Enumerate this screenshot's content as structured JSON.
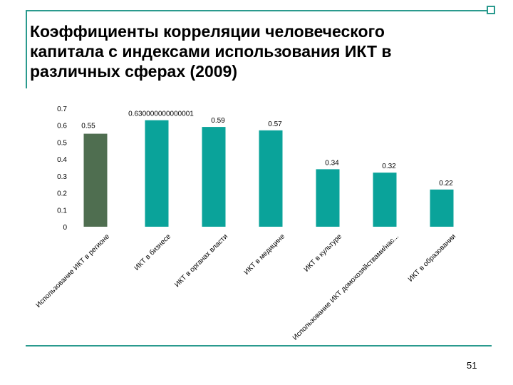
{
  "slide": {
    "title": "Коэффициенты корреляции человеческого капитала с индексами использования ИКТ в различных сферах (2009)",
    "page_number": "51",
    "colors": {
      "frame": "#2a9a8e",
      "bar_highlight": "#4f6e50",
      "bar": "#0aa39a"
    }
  },
  "chart_data": {
    "type": "bar",
    "title": "",
    "xlabel": "",
    "ylabel": "",
    "ylim": [
      0,
      0.7
    ],
    "yticks": [
      "0",
      "0.1",
      "0.2",
      "0.3",
      "0.4",
      "0.5",
      "0.6",
      "0.7"
    ],
    "grid": false,
    "legend": "none",
    "categories": [
      "Использование ИКТ в регионе",
      "ИКТ в бизнесе",
      "ИКТ в органах власти",
      "ИКТ в медицине",
      "ИКТ в культуре",
      "Использование ИКТ домохозяйствами/нас...",
      "ИКТ в образовании"
    ],
    "values": [
      0.55,
      0.63,
      0.59,
      0.57,
      0.34,
      0.32,
      0.22
    ],
    "value_labels": [
      "0.55",
      "0.630000000000001",
      "0.59",
      "0.57",
      "0.34",
      "0.32",
      "0.22"
    ],
    "bar_colors": [
      "#4f6e50",
      "#0aa39a",
      "#0aa39a",
      "#0aa39a",
      "#0aa39a",
      "#0aa39a",
      "#0aa39a"
    ]
  }
}
